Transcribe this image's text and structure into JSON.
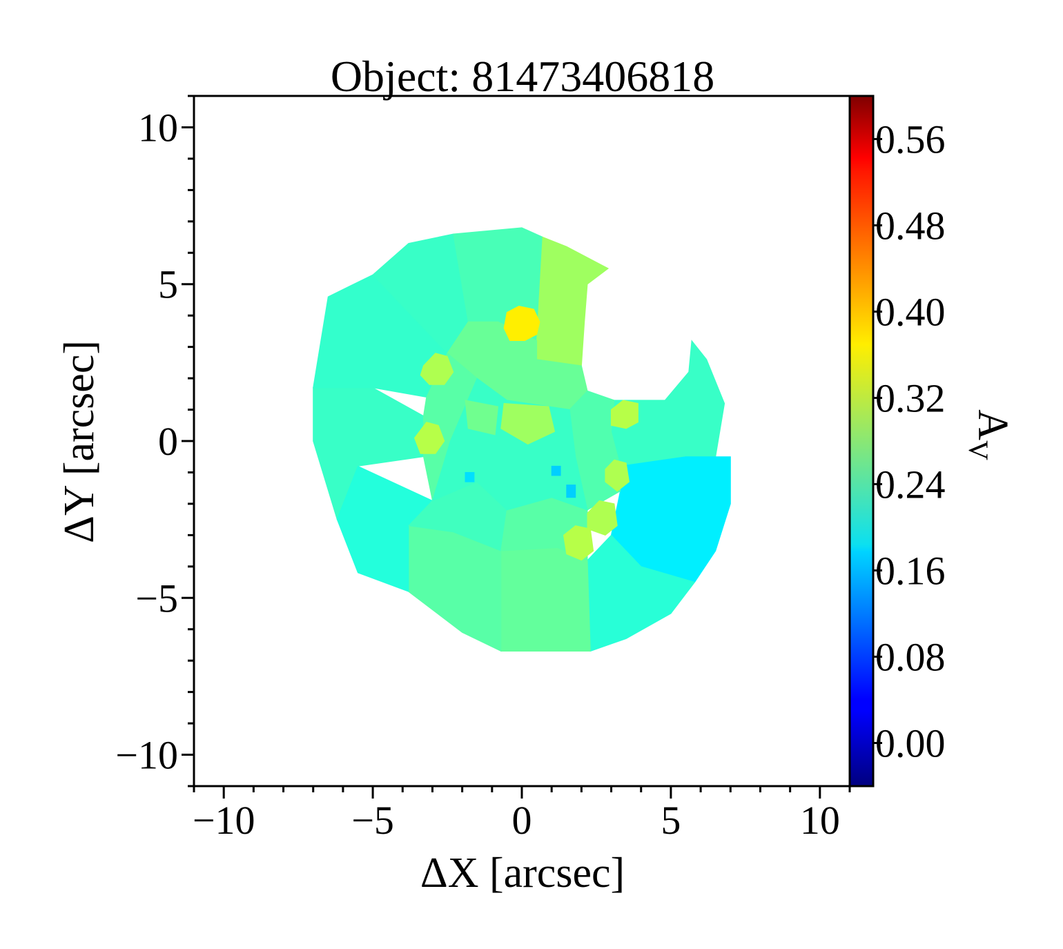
{
  "chart_data": {
    "type": "heatmap",
    "title": "Object: 81473406818",
    "xlabel": "ΔX [arcsec]",
    "ylabel": "ΔY [arcsec]",
    "colorbar_label": "A",
    "colorbar_label_sub": "V",
    "colormap": "jet",
    "xlim": [
      -11,
      11
    ],
    "ylim": [
      -11,
      11
    ],
    "xticks": [
      -10,
      -5,
      0,
      5,
      10
    ],
    "xtick_labels": [
      "−10",
      "−5",
      "0",
      "5",
      "10"
    ],
    "yticks": [
      -10,
      -5,
      0,
      5,
      10
    ],
    "ytick_labels": [
      "−10",
      "−5",
      "0",
      "5",
      "10"
    ],
    "clim": [
      -0.04,
      0.6
    ],
    "cbar_ticks": [
      0.0,
      0.08,
      0.16,
      0.24,
      0.32,
      0.4,
      0.48,
      0.56
    ],
    "cbar_tick_labels": [
      "0.00",
      "0.08",
      "0.16",
      "0.24",
      "0.32",
      "0.40",
      "0.48",
      "0.56"
    ],
    "grid": false,
    "regions": [
      {
        "name": "outer-west-sector",
        "value": 0.235,
        "points": [
          [
            -6.2,
            -2.5
          ],
          [
            -7,
            0
          ],
          [
            -7,
            1.7
          ],
          [
            -5,
            1.7
          ],
          [
            -3.3,
            0.8
          ],
          [
            -3.3,
            -0.5
          ],
          [
            -5.5,
            -0.8
          ]
        ]
      },
      {
        "name": "outer-north-west-sector",
        "value": 0.232,
        "points": [
          [
            -7,
            1.7
          ],
          [
            -6.5,
            4.6
          ],
          [
            -5,
            5.3
          ],
          [
            -2.5,
            2.8
          ],
          [
            -3.2,
            1.4
          ],
          [
            -5,
            1.7
          ]
        ]
      },
      {
        "name": "outer-north-west-top-sector",
        "value": 0.235,
        "points": [
          [
            -5,
            5.3
          ],
          [
            -3.8,
            6.3
          ],
          [
            -2.3,
            6.6
          ],
          [
            -1.5,
            6.3
          ],
          [
            -1.8,
            3.8
          ],
          [
            -2.5,
            2.8
          ]
        ]
      },
      {
        "name": "outer-north-sector",
        "value": 0.245,
        "points": [
          [
            -2.3,
            6.6
          ],
          [
            0,
            6.8
          ],
          [
            0.7,
            6.5
          ],
          [
            0.5,
            3.2
          ],
          [
            -0.8,
            3.8
          ],
          [
            -1.8,
            3.8
          ]
        ]
      },
      {
        "name": "north-arm-sector",
        "value": 0.3,
        "points": [
          [
            0.7,
            6.5
          ],
          [
            1.5,
            6.2
          ],
          [
            2.9,
            5.5
          ],
          [
            2.2,
            5.0
          ],
          [
            2.1,
            3.8
          ],
          [
            2.0,
            2.4
          ],
          [
            0.5,
            2.6
          ],
          [
            0.5,
            3.2
          ]
        ]
      },
      {
        "name": "inner-north-sector",
        "value": 0.265,
        "points": [
          [
            -1.8,
            3.8
          ],
          [
            -0.8,
            3.8
          ],
          [
            0.5,
            3.2
          ],
          [
            0.5,
            2.6
          ],
          [
            2.0,
            2.4
          ],
          [
            2.2,
            1.6
          ],
          [
            1.6,
            1.0
          ],
          [
            -0.5,
            1.3
          ],
          [
            -1.5,
            2.0
          ],
          [
            -2.5,
            2.8
          ]
        ]
      },
      {
        "name": "east-lobe-north-sector",
        "value": 0.235,
        "points": [
          [
            3.1,
            1.3
          ],
          [
            4.8,
            1.3
          ],
          [
            5.6,
            2.2
          ],
          [
            5.7,
            3.2
          ],
          [
            6.2,
            2.6
          ],
          [
            6.8,
            1.2
          ],
          [
            6.5,
            -0.5
          ],
          [
            5.5,
            -0.5
          ],
          [
            3.3,
            -0.8
          ],
          [
            3.0,
            0.3
          ]
        ]
      },
      {
        "name": "east-lobe-south-sector",
        "value": 0.19,
        "points": [
          [
            3.3,
            -0.8
          ],
          [
            5.5,
            -0.5
          ],
          [
            7.0,
            -0.5
          ],
          [
            7.0,
            -2.0
          ],
          [
            6.5,
            -3.5
          ],
          [
            5.8,
            -4.5
          ],
          [
            4.0,
            -4.0
          ],
          [
            3.0,
            -3.0
          ],
          [
            3.3,
            -1.6
          ]
        ]
      },
      {
        "name": "outer-south-east-sector",
        "value": 0.225,
        "points": [
          [
            2.2,
            -3.8
          ],
          [
            3.0,
            -3.0
          ],
          [
            4.0,
            -4.0
          ],
          [
            5.8,
            -4.5
          ],
          [
            5.0,
            -5.5
          ],
          [
            3.5,
            -6.3
          ],
          [
            2.3,
            -6.7
          ],
          [
            2.2,
            -5.0
          ]
        ]
      },
      {
        "name": "outer-south-sector",
        "value": 0.262,
        "points": [
          [
            -0.7,
            -3.5
          ],
          [
            -0.7,
            -6.7
          ],
          [
            2.3,
            -6.7
          ],
          [
            2.2,
            -3.8
          ],
          [
            1.2,
            -3.4
          ]
        ]
      },
      {
        "name": "outer-south-west-sector",
        "value": 0.255,
        "points": [
          [
            -3.8,
            -2.7
          ],
          [
            -3.8,
            -4.8
          ],
          [
            -2.0,
            -6.1
          ],
          [
            -0.7,
            -6.7
          ],
          [
            -0.7,
            -3.5
          ],
          [
            -2.3,
            -2.9
          ]
        ]
      },
      {
        "name": "outer-south-west-lower-sector",
        "value": 0.222,
        "points": [
          [
            -6.2,
            -2.5
          ],
          [
            -5.5,
            -4.2
          ],
          [
            -3.8,
            -4.8
          ],
          [
            -3.8,
            -2.7
          ],
          [
            -3.0,
            -1.9
          ],
          [
            -5.5,
            -0.8
          ]
        ]
      },
      {
        "name": "inner-south-west-sector",
        "value": 0.24,
        "points": [
          [
            -3.0,
            -1.9
          ],
          [
            -3.8,
            -2.7
          ],
          [
            -2.3,
            -2.9
          ],
          [
            -0.7,
            -3.5
          ],
          [
            -0.5,
            -2.2
          ],
          [
            -1.5,
            -1.3
          ]
        ]
      },
      {
        "name": "inner-south-east-sector",
        "value": 0.255,
        "points": [
          [
            -0.5,
            -2.2
          ],
          [
            -0.7,
            -3.5
          ],
          [
            1.2,
            -3.4
          ],
          [
            2.2,
            -3.8
          ],
          [
            2.2,
            -2.2
          ],
          [
            1.0,
            -1.8
          ]
        ]
      },
      {
        "name": "inner-east-sector",
        "value": 0.25,
        "points": [
          [
            1.6,
            1.0
          ],
          [
            2.2,
            1.6
          ],
          [
            3.1,
            1.3
          ],
          [
            3.0,
            0.3
          ],
          [
            3.3,
            -0.8
          ],
          [
            3.3,
            -1.6
          ],
          [
            2.2,
            -2.2
          ],
          [
            1.8,
            -0.5
          ]
        ]
      },
      {
        "name": "inner-west-sector",
        "value": 0.255,
        "points": [
          [
            -3.3,
            0.8
          ],
          [
            -3.2,
            1.4
          ],
          [
            -2.5,
            2.8
          ],
          [
            -1.5,
            2.0
          ],
          [
            -2.4,
            0.0
          ],
          [
            -3.0,
            -1.9
          ],
          [
            -3.3,
            -0.5
          ]
        ]
      },
      {
        "name": "core-region",
        "value": 0.235,
        "points": [
          [
            -1.5,
            2.0
          ],
          [
            -0.5,
            1.3
          ],
          [
            1.6,
            1.0
          ],
          [
            1.8,
            -0.5
          ],
          [
            2.2,
            -2.2
          ],
          [
            1.0,
            -1.8
          ],
          [
            -0.5,
            -2.2
          ],
          [
            -1.5,
            -1.3
          ],
          [
            -3.0,
            -1.9
          ],
          [
            -2.4,
            0.0
          ]
        ]
      },
      {
        "name": "core-north-patch",
        "value": 0.3,
        "points": [
          [
            -0.6,
            1.2
          ],
          [
            0.9,
            1.1
          ],
          [
            1.1,
            0.3
          ],
          [
            0.2,
            -0.1
          ],
          [
            -0.7,
            0.4
          ]
        ]
      },
      {
        "name": "core-west-patch",
        "value": 0.27,
        "points": [
          [
            -1.9,
            1.3
          ],
          [
            -0.8,
            1.1
          ],
          [
            -0.9,
            0.2
          ],
          [
            -1.8,
            0.4
          ]
        ]
      },
      {
        "name": "blob-north-yellow",
        "value": 0.37,
        "points": [
          [
            -0.5,
            4.1
          ],
          [
            -0.1,
            4.3
          ],
          [
            0.4,
            4.2
          ],
          [
            0.6,
            3.8
          ],
          [
            0.5,
            3.4
          ],
          [
            0.1,
            3.2
          ],
          [
            -0.4,
            3.2
          ],
          [
            -0.6,
            3.6
          ]
        ]
      },
      {
        "name": "blob-inner-north-west",
        "value": 0.31,
        "points": [
          [
            -3.3,
            2.4
          ],
          [
            -2.9,
            2.8
          ],
          [
            -2.5,
            2.7
          ],
          [
            -2.3,
            2.2
          ],
          [
            -2.6,
            1.8
          ],
          [
            -3.1,
            1.8
          ],
          [
            -3.4,
            2.1
          ]
        ]
      },
      {
        "name": "blob-inner-west",
        "value": 0.315,
        "points": [
          [
            -3.6,
            0.1
          ],
          [
            -3.2,
            0.6
          ],
          [
            -2.8,
            0.5
          ],
          [
            -2.6,
            0.0
          ],
          [
            -2.9,
            -0.4
          ],
          [
            -3.4,
            -0.4
          ]
        ]
      },
      {
        "name": "blob-inner-north-east",
        "value": 0.315,
        "points": [
          [
            3.0,
            1.0
          ],
          [
            3.4,
            1.3
          ],
          [
            3.9,
            1.2
          ],
          [
            3.9,
            0.6
          ],
          [
            3.5,
            0.4
          ],
          [
            3.0,
            0.5
          ]
        ]
      },
      {
        "name": "blob-inner-east",
        "value": 0.31,
        "points": [
          [
            2.8,
            -0.9
          ],
          [
            3.1,
            -0.6
          ],
          [
            3.5,
            -0.7
          ],
          [
            3.6,
            -1.3
          ],
          [
            3.2,
            -1.6
          ],
          [
            2.8,
            -1.3
          ]
        ]
      },
      {
        "name": "blob-south-east-upper",
        "value": 0.31,
        "points": [
          [
            2.2,
            -2.3
          ],
          [
            2.6,
            -1.9
          ],
          [
            3.1,
            -2.0
          ],
          [
            3.2,
            -2.7
          ],
          [
            2.8,
            -3.0
          ],
          [
            2.2,
            -2.8
          ]
        ]
      },
      {
        "name": "blob-south-east-lower",
        "value": 0.315,
        "points": [
          [
            1.4,
            -3.0
          ],
          [
            1.8,
            -2.7
          ],
          [
            2.3,
            -2.8
          ],
          [
            2.4,
            -3.5
          ],
          [
            2.0,
            -3.8
          ],
          [
            1.5,
            -3.6
          ]
        ]
      },
      {
        "name": "spot-core-1",
        "value": 0.17,
        "points": [
          [
            1.0,
            -0.8
          ],
          [
            1.3,
            -0.8
          ],
          [
            1.3,
            -1.1
          ],
          [
            1.0,
            -1.1
          ]
        ]
      },
      {
        "name": "spot-core-2",
        "value": 0.17,
        "points": [
          [
            1.5,
            -1.4
          ],
          [
            1.8,
            -1.4
          ],
          [
            1.8,
            -1.8
          ],
          [
            1.5,
            -1.8
          ]
        ]
      },
      {
        "name": "spot-core-3",
        "value": 0.18,
        "points": [
          [
            -1.9,
            -1.0
          ],
          [
            -1.6,
            -1.0
          ],
          [
            -1.6,
            -1.3
          ],
          [
            -1.9,
            -1.3
          ]
        ]
      }
    ]
  }
}
